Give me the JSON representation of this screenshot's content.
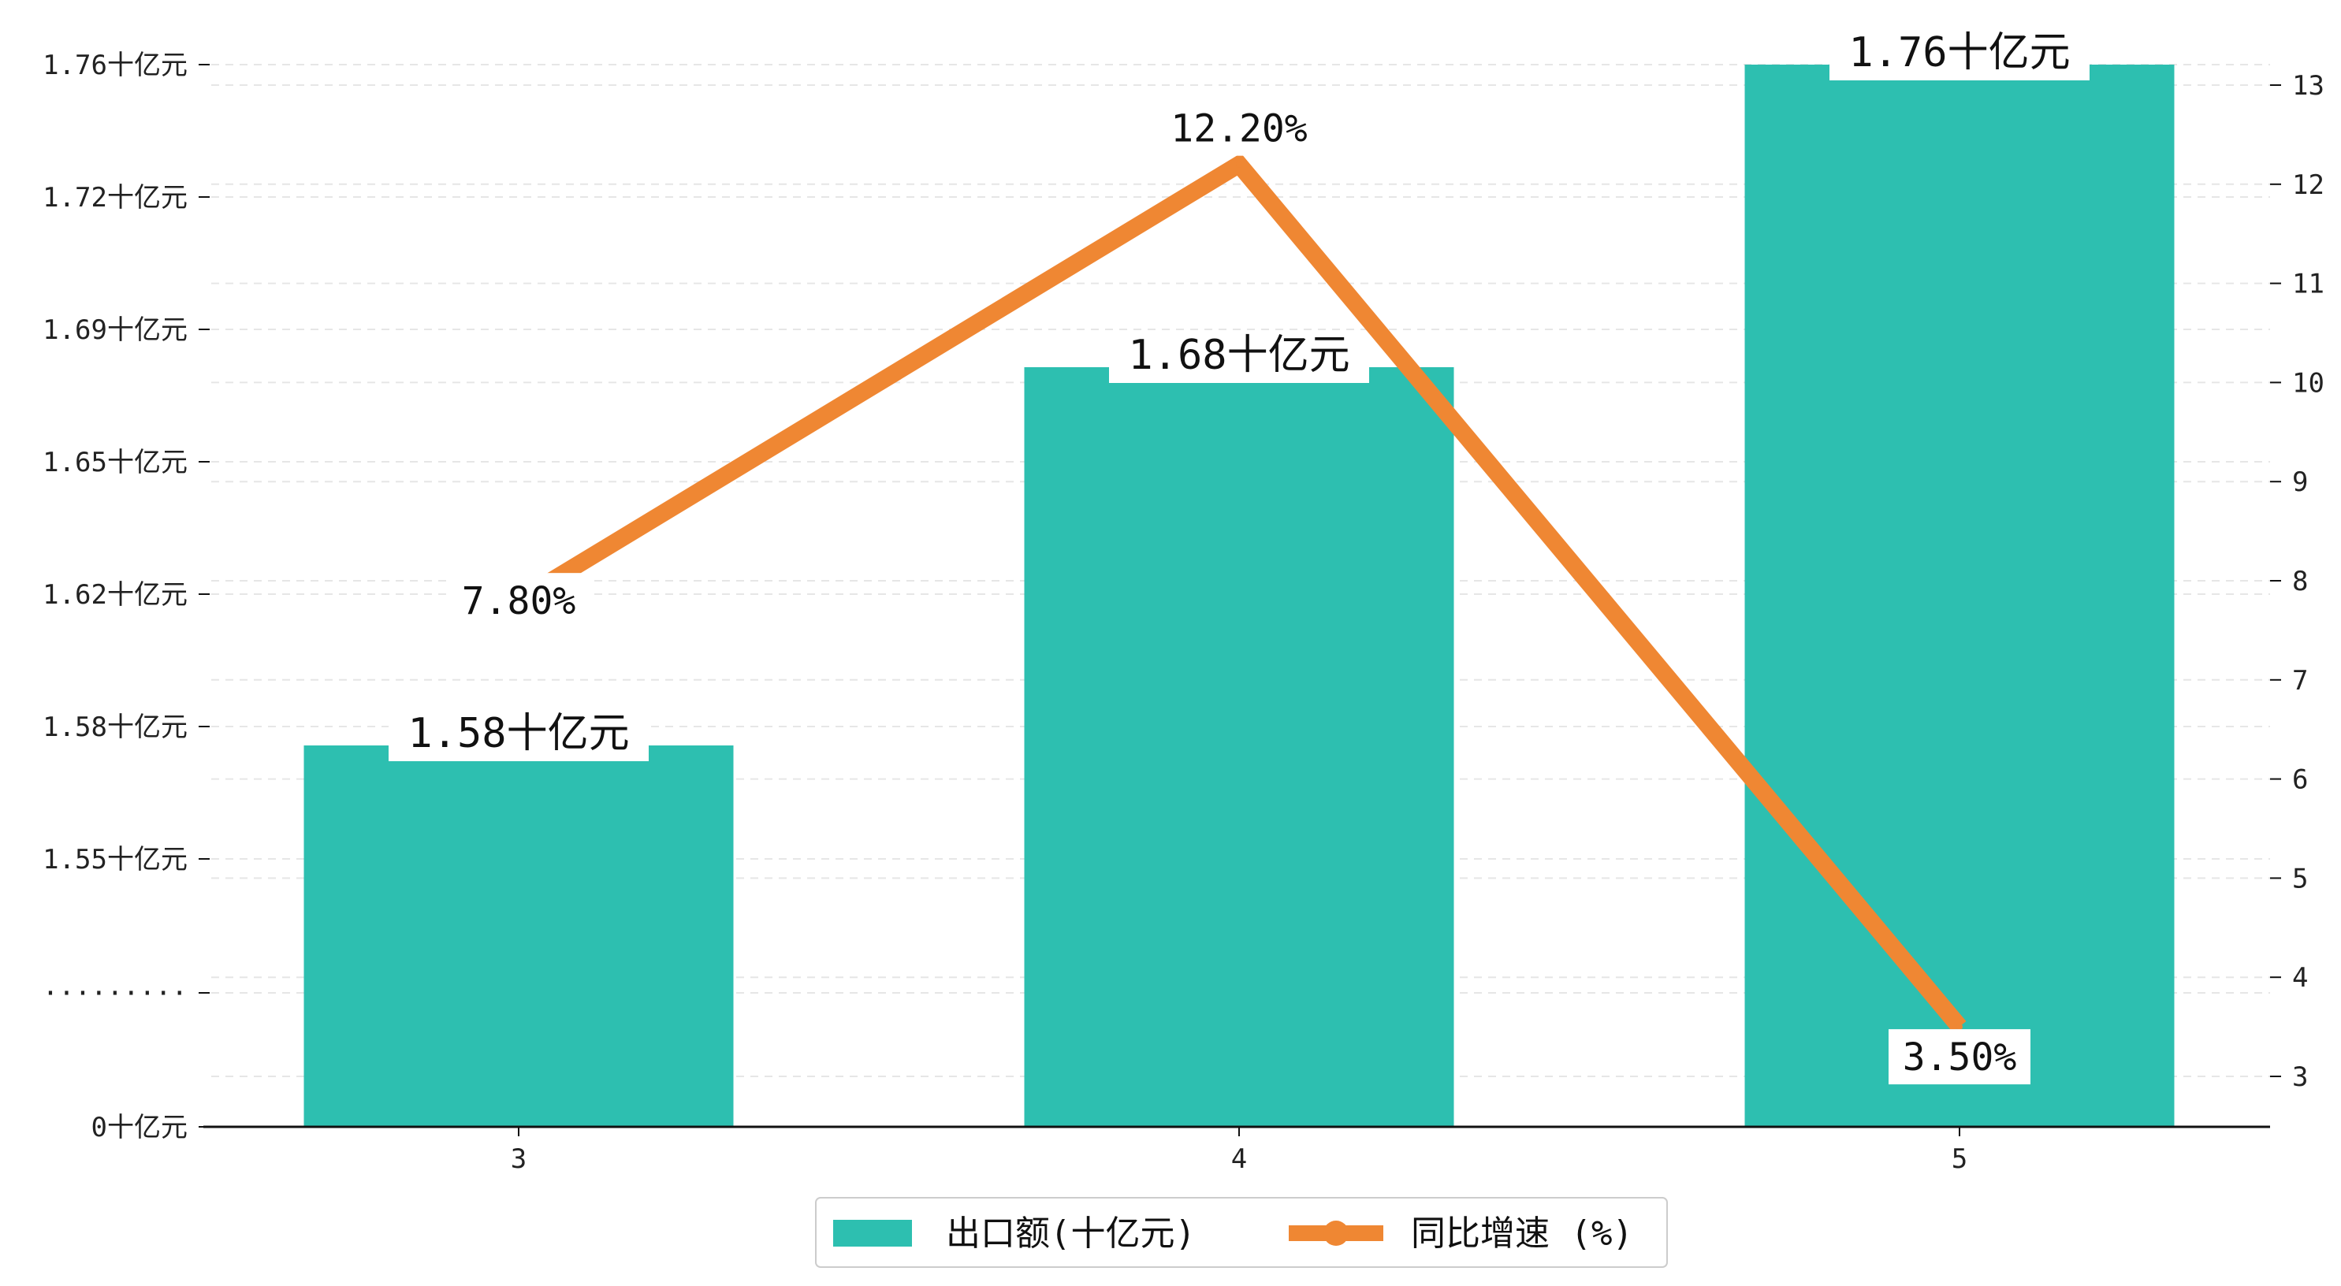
{
  "colors": {
    "bar": "#2dbfb0",
    "line": "#ef8733",
    "grid": "#e6e6e6",
    "axis": "#111111"
  },
  "chart_data": {
    "type": "bar",
    "categories": [
      "3",
      "4",
      "5"
    ],
    "series": [
      {
        "name": "出口额(十亿元)",
        "type": "bar",
        "axis": "left",
        "values": [
          1.58,
          1.68,
          1.76
        ],
        "labels": [
          "1.58十亿元",
          "1.68十亿元",
          "1.76十亿元"
        ]
      },
      {
        "name": "同比增速 (%)",
        "type": "line",
        "axis": "right",
        "values": [
          7.8,
          12.2,
          3.5
        ],
        "labels": [
          "7.80%",
          "12.20%",
          "3.50%"
        ]
      }
    ],
    "left_axis": {
      "ticks": [
        "1.76十亿元",
        "1.72十亿元",
        "1.69十亿元",
        "1.65十亿元",
        "1.62十亿元",
        "1.58十亿元",
        "1.55十亿元",
        "·········",
        "0十亿元"
      ],
      "tick_values": [
        1.76,
        1.72,
        1.69,
        1.65,
        1.62,
        1.58,
        1.55,
        null,
        0
      ]
    },
    "right_axis": {
      "ticks": [
        "13",
        "12",
        "11",
        "10",
        "9",
        "8",
        "7",
        "6",
        "5",
        "4",
        "3"
      ],
      "ylim": [
        2.5,
        13.2
      ]
    },
    "grid": true,
    "legend": "bottom"
  }
}
